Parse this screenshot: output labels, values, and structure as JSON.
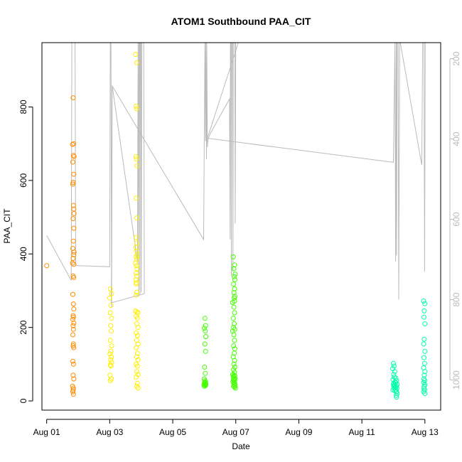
{
  "chart_data": {
    "type": "scatter",
    "title": "ATOM1 Southbound PAA_CIT",
    "xlabel": "Date",
    "ylabel": "PAA_CIT",
    "x_ticks": [
      "Aug 01",
      "Aug 03",
      "Aug 05",
      "Aug 07",
      "Aug 09",
      "Aug 11",
      "Aug 13"
    ],
    "y_ticks": [
      0,
      200,
      400,
      600,
      800
    ],
    "y2_ticks": [
      200,
      400,
      600,
      800,
      1000
    ],
    "xlim_days": [
      0.85,
      13.5
    ],
    "ylim": [
      -25,
      975
    ],
    "y2lim_inverted": [
      1075,
      160
    ],
    "grid": false,
    "scatter_series": [
      {
        "color": "#FF8C00",
        "points": [
          [
            1.0,
            368
          ],
          [
            1.84,
            825
          ],
          [
            1.86,
            700
          ],
          [
            1.82,
            698
          ],
          [
            1.85,
            668
          ],
          [
            1.87,
            665
          ],
          [
            1.83,
            650
          ],
          [
            1.86,
            617
          ],
          [
            1.84,
            595
          ],
          [
            1.83,
            590
          ],
          [
            1.85,
            532
          ],
          [
            1.86,
            522
          ],
          [
            1.87,
            510
          ],
          [
            1.84,
            496
          ],
          [
            1.86,
            470
          ],
          [
            1.85,
            435
          ],
          [
            1.83,
            415
          ],
          [
            1.87,
            405
          ],
          [
            1.86,
            398
          ],
          [
            1.84,
            388
          ],
          [
            1.82,
            375
          ],
          [
            1.86,
            372
          ],
          [
            1.84,
            340
          ],
          [
            1.86,
            336
          ],
          [
            1.83,
            290
          ],
          [
            1.85,
            264
          ],
          [
            1.86,
            250
          ],
          [
            1.84,
            232
          ],
          [
            1.85,
            228
          ],
          [
            1.83,
            222
          ],
          [
            1.86,
            212
          ],
          [
            1.84,
            205
          ],
          [
            1.85,
            195
          ],
          [
            1.83,
            180
          ],
          [
            1.85,
            155
          ],
          [
            1.84,
            150
          ],
          [
            1.86,
            145
          ],
          [
            1.83,
            108
          ],
          [
            1.85,
            100
          ],
          [
            1.84,
            70
          ],
          [
            1.86,
            60
          ],
          [
            1.82,
            40
          ],
          [
            1.85,
            35
          ],
          [
            1.84,
            30
          ],
          [
            1.83,
            25
          ],
          [
            1.85,
            18
          ]
        ]
      },
      {
        "color": "#FFEE00",
        "points": [
          [
            3.02,
            305
          ],
          [
            3.06,
            292
          ],
          [
            3.0,
            280
          ],
          [
            3.04,
            260
          ],
          [
            3.02,
            240
          ],
          [
            3.06,
            225
          ],
          [
            3.03,
            205
          ],
          [
            3.05,
            190
          ],
          [
            3.02,
            165
          ],
          [
            3.06,
            150
          ],
          [
            3.04,
            135
          ],
          [
            3.01,
            128
          ],
          [
            3.05,
            120
          ],
          [
            3.03,
            112
          ],
          [
            3.06,
            105
          ],
          [
            3.02,
            98
          ],
          [
            3.04,
            95
          ],
          [
            3.01,
            70
          ],
          [
            3.05,
            60
          ],
          [
            3.02,
            55
          ],
          [
            3.82,
            943
          ],
          [
            3.86,
            920
          ],
          [
            3.84,
            802
          ],
          [
            3.86,
            795
          ],
          [
            3.83,
            665
          ],
          [
            3.85,
            658
          ],
          [
            3.87,
            640
          ],
          [
            3.84,
            552
          ],
          [
            3.86,
            498
          ],
          [
            3.84,
            445
          ],
          [
            3.86,
            430
          ],
          [
            3.83,
            418
          ],
          [
            3.85,
            408
          ],
          [
            3.87,
            398
          ],
          [
            3.84,
            392
          ],
          [
            3.86,
            385
          ],
          [
            3.82,
            375
          ],
          [
            3.85,
            368
          ],
          [
            3.87,
            360
          ],
          [
            3.84,
            348
          ],
          [
            3.86,
            340
          ],
          [
            3.83,
            330
          ],
          [
            3.85,
            322
          ],
          [
            3.84,
            318
          ],
          [
            3.86,
            296
          ],
          [
            3.84,
            288
          ],
          [
            3.82,
            245
          ],
          [
            3.86,
            242
          ],
          [
            3.9,
            240
          ],
          [
            3.84,
            230
          ],
          [
            3.88,
            225
          ],
          [
            3.86,
            210
          ],
          [
            3.9,
            200
          ],
          [
            3.84,
            185
          ],
          [
            3.88,
            178
          ],
          [
            3.86,
            165
          ],
          [
            3.9,
            155
          ],
          [
            3.84,
            145
          ],
          [
            3.88,
            130
          ],
          [
            3.86,
            120
          ],
          [
            3.9,
            112
          ],
          [
            3.84,
            100
          ],
          [
            3.88,
            95
          ],
          [
            3.86,
            80
          ],
          [
            3.9,
            72
          ],
          [
            3.84,
            65
          ],
          [
            3.88,
            48
          ],
          [
            3.86,
            40
          ],
          [
            3.9,
            35
          ]
        ]
      },
      {
        "color": "#44FF00",
        "points": [
          [
            6.02,
            225
          ],
          [
            6.04,
            205
          ],
          [
            6.0,
            198
          ],
          [
            6.03,
            190
          ],
          [
            6.05,
            175
          ],
          [
            6.02,
            155
          ],
          [
            6.04,
            135
          ],
          [
            6.01,
            92
          ],
          [
            6.03,
            75
          ],
          [
            6.0,
            60
          ],
          [
            6.02,
            55
          ],
          [
            6.04,
            52
          ],
          [
            6.01,
            50
          ],
          [
            6.03,
            48
          ],
          [
            6.05,
            46
          ],
          [
            6.02,
            45
          ],
          [
            5.99,
            44
          ],
          [
            6.04,
            42
          ],
          [
            6.0,
            40
          ],
          [
            6.03,
            43
          ],
          [
            6.92,
            392
          ],
          [
            6.96,
            370
          ],
          [
            6.94,
            360
          ],
          [
            6.98,
            345
          ],
          [
            6.95,
            338
          ],
          [
            6.97,
            330
          ],
          [
            6.93,
            318
          ],
          [
            6.96,
            305
          ],
          [
            6.94,
            295
          ],
          [
            6.97,
            285
          ],
          [
            6.95,
            280
          ],
          [
            6.96,
            272
          ],
          [
            6.9,
            268
          ],
          [
            6.94,
            255
          ],
          [
            6.96,
            240
          ],
          [
            6.92,
            225
          ],
          [
            6.95,
            210
          ],
          [
            6.93,
            200
          ],
          [
            6.97,
            195
          ],
          [
            6.9,
            190
          ],
          [
            6.94,
            180
          ],
          [
            6.96,
            165
          ],
          [
            6.93,
            150
          ],
          [
            6.97,
            142
          ],
          [
            6.95,
            130
          ],
          [
            6.92,
            120
          ],
          [
            6.96,
            110
          ],
          [
            6.94,
            100
          ],
          [
            6.97,
            92
          ],
          [
            6.93,
            85
          ],
          [
            6.96,
            78
          ],
          [
            6.9,
            72
          ],
          [
            6.94,
            70
          ],
          [
            6.97,
            68
          ],
          [
            6.92,
            65
          ],
          [
            6.95,
            62
          ],
          [
            6.98,
            60
          ],
          [
            6.93,
            58
          ],
          [
            6.96,
            55
          ],
          [
            6.91,
            52
          ],
          [
            6.94,
            50
          ],
          [
            6.97,
            48
          ],
          [
            6.95,
            45
          ],
          [
            6.98,
            42
          ],
          [
            6.93,
            40
          ],
          [
            6.96,
            38
          ],
          [
            6.99,
            35
          ]
        ]
      },
      {
        "color": "#00FFAA",
        "points": [
          [
            12.0,
            102
          ],
          [
            12.02,
            95
          ],
          [
            11.98,
            88
          ],
          [
            12.04,
            80
          ],
          [
            12.01,
            72
          ],
          [
            12.03,
            65
          ],
          [
            11.99,
            58
          ],
          [
            12.05,
            52
          ],
          [
            12.02,
            48
          ],
          [
            12.0,
            45
          ],
          [
            12.04,
            42
          ],
          [
            12.01,
            40
          ],
          [
            12.06,
            38
          ],
          [
            12.03,
            35
          ],
          [
            11.99,
            30
          ],
          [
            12.05,
            28
          ],
          [
            12.08,
            62
          ],
          [
            12.1,
            55
          ],
          [
            12.07,
            50
          ],
          [
            12.12,
            45
          ],
          [
            12.09,
            40
          ],
          [
            12.11,
            35
          ],
          [
            12.08,
            30
          ],
          [
            12.1,
            25
          ],
          [
            12.12,
            20
          ],
          [
            12.09,
            15
          ],
          [
            12.1,
            10
          ],
          [
            12.96,
            272
          ],
          [
            13.0,
            265
          ],
          [
            12.98,
            245
          ],
          [
            12.97,
            228
          ],
          [
            13.0,
            210
          ],
          [
            12.98,
            168
          ],
          [
            12.96,
            155
          ],
          [
            13.0,
            135
          ],
          [
            12.97,
            118
          ],
          [
            12.99,
            102
          ],
          [
            12.96,
            90
          ],
          [
            13.0,
            80
          ],
          [
            12.98,
            70
          ],
          [
            12.97,
            60
          ],
          [
            12.99,
            55
          ],
          [
            12.96,
            50
          ],
          [
            13.0,
            45
          ],
          [
            12.98,
            40
          ],
          [
            12.97,
            35
          ],
          [
            12.99,
            30
          ],
          [
            12.96,
            25
          ],
          [
            13.0,
            20
          ]
        ]
      }
    ],
    "line_series": {
      "color": "#BBBBBB",
      "axis": "right",
      "points": [
        [
          1.0,
          640
        ],
        [
          1.78,
          752
        ],
        [
          1.8,
          160
        ],
        [
          1.82,
          160
        ],
        [
          1.84,
          160
        ],
        [
          1.86,
          160
        ],
        [
          1.88,
          160
        ],
        [
          1.9,
          160
        ],
        [
          1.92,
          715
        ],
        [
          3.0,
          718
        ],
        [
          3.02,
          160
        ],
        [
          3.04,
          160
        ],
        [
          3.06,
          820
        ],
        [
          3.08,
          268
        ],
        [
          3.88,
          705
        ],
        [
          3.9,
          160
        ],
        [
          3.92,
          792
        ],
        [
          3.93,
          160
        ],
        [
          3.95,
          160
        ],
        [
          3.96,
          788
        ],
        [
          3.97,
          160
        ],
        [
          3.99,
          160
        ],
        [
          4.0,
          782
        ],
        [
          4.02,
          160
        ],
        [
          4.04,
          160
        ],
        [
          4.06,
          160
        ],
        [
          4.08,
          160
        ],
        [
          4.1,
          785
        ],
        [
          3.05,
          808
        ],
        [
          3.08,
          268
        ],
        [
          5.98,
          650
        ],
        [
          6.0,
          400
        ],
        [
          6.02,
          160
        ],
        [
          6.04,
          405
        ],
        [
          6.05,
          160
        ],
        [
          6.07,
          450
        ],
        [
          6.08,
          160
        ],
        [
          6.1,
          420
        ],
        [
          6.12,
          400
        ],
        [
          6.2,
          385
        ],
        [
          6.8,
          300
        ],
        [
          6.82,
          650
        ],
        [
          6.83,
          160
        ],
        [
          6.85,
          160
        ],
        [
          6.86,
          740
        ],
        [
          6.87,
          160
        ],
        [
          6.89,
          160
        ],
        [
          6.9,
          160
        ],
        [
          6.91,
          730
        ],
        [
          6.92,
          160
        ],
        [
          6.94,
          160
        ],
        [
          6.95,
          160
        ],
        [
          6.97,
          160
        ],
        [
          6.98,
          610
        ],
        [
          7.0,
          160
        ],
        [
          7.02,
          160
        ],
        [
          7.05,
          160
        ],
        [
          7.08,
          160
        ],
        [
          6.1,
          398
        ],
        [
          12.0,
          458
        ],
        [
          12.05,
          160
        ],
        [
          12.07,
          705
        ],
        [
          12.09,
          160
        ],
        [
          12.1,
          690
        ],
        [
          12.12,
          160
        ],
        [
          12.15,
          160
        ],
        [
          12.17,
          800
        ],
        [
          12.2,
          160
        ],
        [
          12.22,
          160
        ],
        [
          12.9,
          465
        ],
        [
          12.93,
          160
        ],
        [
          12.95,
          160
        ],
        [
          12.97,
          160
        ],
        [
          12.99,
          730
        ],
        [
          13.01,
          160
        ]
      ]
    }
  }
}
